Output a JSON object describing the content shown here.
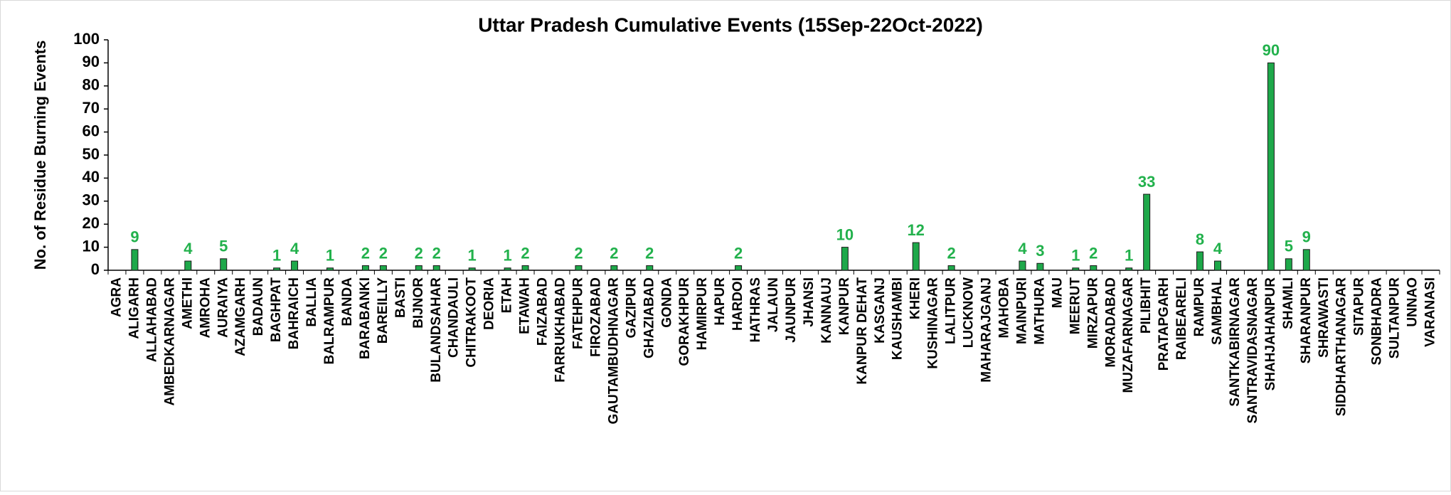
{
  "chart_data": {
    "type": "bar",
    "title": "Uttar Pradesh Cumulative Events (15Sep-22Oct-2022)",
    "y_label": "No. of Residue Burning Events",
    "categories": [
      "AGRA",
      "ALIGARH",
      "ALLAHABAD",
      "AMBEDKARNAGAR",
      "AMETHI",
      "AMROHA",
      "AURAIYA",
      "AZAMGARH",
      "BADAUN",
      "BAGHPAT",
      "BAHRAICH",
      "BALLIA",
      "BALRAMPUR",
      "BANDA",
      "BARABANKI",
      "BAREILLY",
      "BASTI",
      "BIJNOR",
      "BULANDSAHAR",
      "CHANDAULI",
      "CHITRAKOOT",
      "DEORIA",
      "ETAH",
      "ETAWAH",
      "FAIZABAD",
      "FARRUKHABAD",
      "FATEHPUR",
      "FIROZABAD",
      "GAUTAMBUDHNAGAR",
      "GAZIPUR",
      "GHAZIABAD",
      "GONDA",
      "GORAKHPUR",
      "HAMIRPUR",
      "HAPUR",
      "HARDOI",
      "HATHRAS",
      "JALAUN",
      "JAUNPUR",
      "JHANSI",
      "KANNAUJ",
      "KANPUR",
      "KANPUR DEHAT",
      "KASGANJ",
      "KAUSHAMBI",
      "KHERI",
      "KUSHINAGAR",
      "LALITPUR",
      "LUCKNOW",
      "MAHARAJGANJ",
      "MAHOBA",
      "MAINPURI",
      "MATHURA",
      "MAU",
      "MEERUT",
      "MIRZAPUR",
      "MORADABAD",
      "MUZAFARNAGAR",
      "PILIBHIT",
      "PRATAPGARH",
      "RAIBEARELI",
      "RAMPUR",
      "SAMBHAL",
      "SANTKABIRNAGAR",
      "SANTRAVIDASNAGAR",
      "SHAHJAHANPUR",
      "SHAMLI",
      "SHARANPUR",
      "SHRAWASTI",
      "SIDDHARTHANAGAR",
      "SITAPUR",
      "SONBHADRA",
      "SULTANPUR",
      "UNNAO",
      "VARANASI"
    ],
    "values": [
      0,
      9,
      0,
      0,
      4,
      0,
      5,
      0,
      0,
      1,
      4,
      0,
      1,
      0,
      2,
      2,
      0,
      2,
      2,
      0,
      1,
      0,
      1,
      2,
      0,
      0,
      2,
      0,
      2,
      0,
      2,
      0,
      0,
      0,
      0,
      2,
      0,
      0,
      0,
      0,
      0,
      10,
      0,
      0,
      0,
      12,
      0,
      2,
      0,
      0,
      0,
      4,
      3,
      0,
      1,
      2,
      0,
      1,
      33,
      0,
      0,
      8,
      4,
      0,
      0,
      90,
      5,
      9,
      0,
      0,
      0,
      0,
      0,
      0,
      0
    ],
    "color": "#1ea84a",
    "label_color": "#22b14c",
    "ylim": [
      0,
      100
    ],
    "yticks": [
      0,
      10,
      20,
      30,
      40,
      50,
      60,
      70,
      80,
      90,
      100
    ],
    "grid": false
  }
}
